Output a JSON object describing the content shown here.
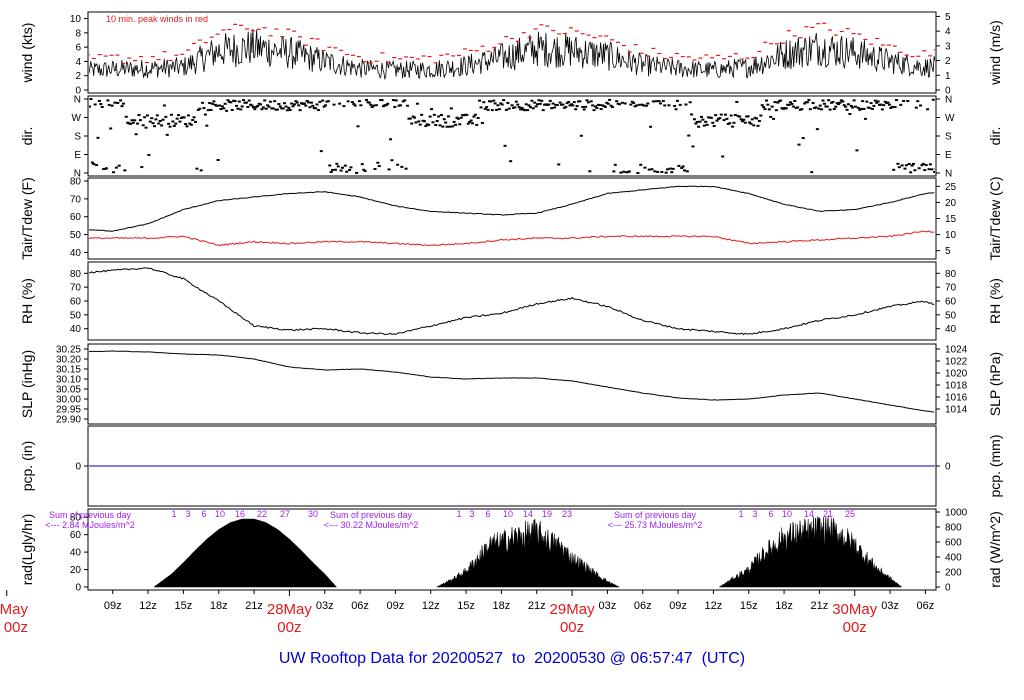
{
  "title": "UW Rooftop Data for 20200527  to  20200530 @ 06:57:47  (UTC)",
  "colors": {
    "axis": "#000000",
    "main_series": "#000000",
    "red_series": "#e41a1c",
    "precip_line": "#0000cc",
    "annotation": "#a020f0",
    "day_label": "#e41a1c",
    "title": "#0000cc"
  },
  "chart_data": [
    {
      "type": "line",
      "panel": "wind",
      "left_label": "wind (kts)",
      "right_label": "wind (m/s)",
      "left_ticks": [
        "0",
        "2",
        "4",
        "6",
        "8",
        "10"
      ],
      "right_ticks": [
        "0",
        "1",
        "2",
        "3",
        "4",
        "5"
      ],
      "ylim": [
        0,
        10.5
      ],
      "annotation": "10 min. peak winds in red",
      "x_hours": [
        0,
        3,
        6,
        9,
        12,
        15,
        18,
        21,
        24,
        27,
        30,
        33,
        36,
        39,
        42,
        45,
        48,
        51,
        54,
        57,
        60,
        63,
        66,
        69,
        72,
        75,
        78,
        81
      ],
      "series": [
        {
          "values": [
            2.8,
            2.6,
            2.7,
            2.9,
            3.0,
            3.2,
            5.5,
            6.0,
            5.2,
            4.0,
            3.0,
            2.8,
            2.9,
            3.4,
            4.5,
            5.8,
            5.5,
            4.8,
            3.5,
            3.0,
            2.8,
            3.2,
            5.0,
            6.0,
            5.2,
            4.0,
            3.2,
            3.5
          ]
        },
        {
          "values": [
            3.9,
            3.7,
            3.8,
            4.1,
            4.2,
            4.5,
            7.8,
            8.5,
            7.4,
            5.8,
            4.3,
            4.0,
            4.1,
            4.8,
            6.4,
            8.2,
            7.8,
            6.8,
            5.0,
            4.3,
            4.0,
            4.5,
            7.1,
            8.5,
            7.4,
            5.7,
            4.6,
            5.0
          ]
        }
      ]
    },
    {
      "type": "scatter",
      "panel": "wind direction",
      "left_label": "dir.",
      "right_label": "dir.",
      "left_ticks": [
        "N",
        "E",
        "S",
        "W",
        "N"
      ],
      "right_ticks": [
        "N",
        "E",
        "S",
        "W",
        "N"
      ],
      "ylim": [
        0,
        360
      ]
    },
    {
      "type": "line",
      "panel": "temperature",
      "left_label": "Tair/Tdew (F)",
      "right_label": "Tair/Tdew (C)",
      "left_ticks": [
        "40",
        "50",
        "60",
        "70",
        "80"
      ],
      "right_ticks": [
        "5",
        "10",
        "15",
        "20",
        "25"
      ],
      "ylim": [
        38,
        80
      ],
      "x_hours": [
        0,
        3,
        6,
        9,
        12,
        15,
        18,
        21,
        24,
        27,
        30,
        33,
        36,
        39,
        42,
        45,
        48,
        51,
        54,
        57,
        60,
        63,
        66,
        69,
        72,
        75,
        78,
        81
      ],
      "series": [
        {
          "values": [
            56,
            55,
            53,
            52,
            56,
            64,
            69,
            71,
            73,
            74,
            71,
            66,
            63,
            62,
            61,
            62,
            67,
            73,
            75,
            77,
            77,
            73,
            67,
            63,
            64,
            68,
            73,
            75
          ]
        },
        {
          "values": [
            49,
            48,
            48,
            48,
            48,
            49,
            44,
            46,
            45,
            46,
            46,
            45,
            44,
            45,
            47,
            48,
            48,
            49,
            49,
            49,
            49,
            45,
            46,
            47,
            48,
            49,
            52,
            50
          ]
        }
      ]
    },
    {
      "type": "line",
      "panel": "relative humidity",
      "left_label": "RH (%)",
      "right_label": "RH (%)",
      "left_ticks": [
        "40",
        "50",
        "60",
        "70",
        "80"
      ],
      "right_ticks": [
        "40",
        "50",
        "60",
        "70",
        "80"
      ],
      "ylim": [
        34,
        86
      ],
      "x_hours": [
        0,
        3,
        6,
        9,
        12,
        15,
        18,
        21,
        24,
        27,
        30,
        33,
        36,
        39,
        42,
        45,
        48,
        51,
        54,
        57,
        60,
        63,
        66,
        69,
        72,
        75,
        78,
        81
      ],
      "series": [
        {
          "values": [
            76,
            78,
            80,
            82,
            84,
            76,
            60,
            42,
            39,
            40,
            37,
            36,
            42,
            48,
            51,
            58,
            62,
            56,
            46,
            40,
            38,
            36,
            40,
            46,
            50,
            56,
            60,
            49
          ]
        }
      ]
    },
    {
      "type": "line",
      "panel": "sea level pressure",
      "left_label": "SLP (inHg)",
      "right_label": "SLP (hPa)",
      "left_ticks": [
        "29.90",
        "29.95",
        "30.00",
        "30.05",
        "30.10",
        "30.15",
        "30.20",
        "30.25"
      ],
      "right_ticks": [
        "1014",
        "1016",
        "1018",
        "1020",
        "1022",
        "1024"
      ],
      "ylim": [
        29.89,
        30.26
      ],
      "x_hours": [
        0,
        3,
        6,
        9,
        12,
        15,
        18,
        21,
        24,
        27,
        30,
        33,
        36,
        39,
        42,
        45,
        48,
        51,
        54,
        57,
        60,
        63,
        66,
        69,
        72,
        75,
        78,
        81
      ],
      "series": [
        {
          "values": [
            30.23,
            30.235,
            30.235,
            30.24,
            30.235,
            30.225,
            30.22,
            30.2,
            30.16,
            30.145,
            30.15,
            30.135,
            30.11,
            30.1,
            30.105,
            30.105,
            30.09,
            30.06,
            30.03,
            30.005,
            29.995,
            30.0,
            30.02,
            30.03,
            30.0,
            29.97,
            29.94,
            29.92
          ]
        }
      ]
    },
    {
      "type": "line",
      "panel": "precipitation",
      "left_label": "pcp. (in)",
      "right_label": "pcp. (mm)",
      "left_ticks": [
        "0"
      ],
      "right_ticks": [
        "0"
      ],
      "ylim": [
        -1,
        1
      ],
      "series": [
        {
          "values": [
            0,
            0
          ]
        }
      ]
    },
    {
      "type": "area",
      "panel": "solar radiation",
      "left_label": "rad(Lgly/hr)",
      "right_label": "rad (W/m^2)",
      "left_ticks": [
        "0",
        "20",
        "40",
        "60",
        "80"
      ],
      "right_ticks": [
        "0",
        "200",
        "400",
        "600",
        "800",
        "1000"
      ],
      "ylim": [
        0,
        86
      ],
      "x_hours": [
        12.5,
        14,
        15,
        16,
        17,
        18,
        19,
        20,
        21,
        22,
        23,
        24,
        25,
        26,
        27,
        28,
        36.5,
        38,
        39,
        40,
        41,
        42,
        43,
        44,
        45,
        46,
        47,
        48,
        49,
        50,
        51,
        52,
        60.5,
        62,
        63,
        64,
        65,
        66,
        67,
        68,
        69,
        70,
        71,
        72,
        73,
        74,
        75,
        76
      ],
      "values": [
        0,
        15,
        28,
        42,
        55,
        66,
        74,
        78,
        78,
        74,
        66,
        55,
        42,
        28,
        15,
        0,
        0,
        12,
        22,
        40,
        58,
        62,
        68,
        72,
        76,
        64,
        56,
        40,
        30,
        18,
        8,
        0,
        0,
        15,
        24,
        42,
        56,
        68,
        74,
        76,
        80,
        78,
        70,
        58,
        40,
        24,
        12,
        0
      ]
    }
  ],
  "hour_marks": {
    "labels": [
      "1",
      "3",
      "6",
      "10",
      "16",
      "22",
      "27",
      "30"
    ],
    "days": [
      {
        "hour_labels": [
          "1",
          "3",
          "6",
          "10",
          "16",
          "22",
          "27",
          "30"
        ]
      },
      {
        "hour_labels": [
          "1",
          "3",
          "6",
          "10",
          "14",
          "19",
          "23"
        ]
      },
      {
        "hour_labels": [
          "1",
          "3",
          "6",
          "10",
          "14",
          "21",
          "25"
        ]
      }
    ]
  },
  "insolation": [
    {
      "line1": "Sum of previous day",
      "line2": "<--- 2.84 MJoules/m^2"
    },
    {
      "line1": "Sum of previous day",
      "line2": "<--- 30.22 MJoules/m^2"
    },
    {
      "line1": "Sum of previous day",
      "line2": "<--- 25.73 MJoules/m^2"
    }
  ],
  "x_axis": {
    "ticks": [
      "09z",
      "12z",
      "15z",
      "18z",
      "21z",
      "03z",
      "06z",
      "09z",
      "12z",
      "15z",
      "18z",
      "21z",
      "03z",
      "06z",
      "09z",
      "12z",
      "15z",
      "18z",
      "21z",
      "03z",
      "06z"
    ],
    "days": [
      {
        "date": "May",
        "time": "00z"
      },
      {
        "date": "28May",
        "time": "00z"
      },
      {
        "date": "29May",
        "time": "00z"
      },
      {
        "date": "30May",
        "time": "00z"
      }
    ]
  }
}
